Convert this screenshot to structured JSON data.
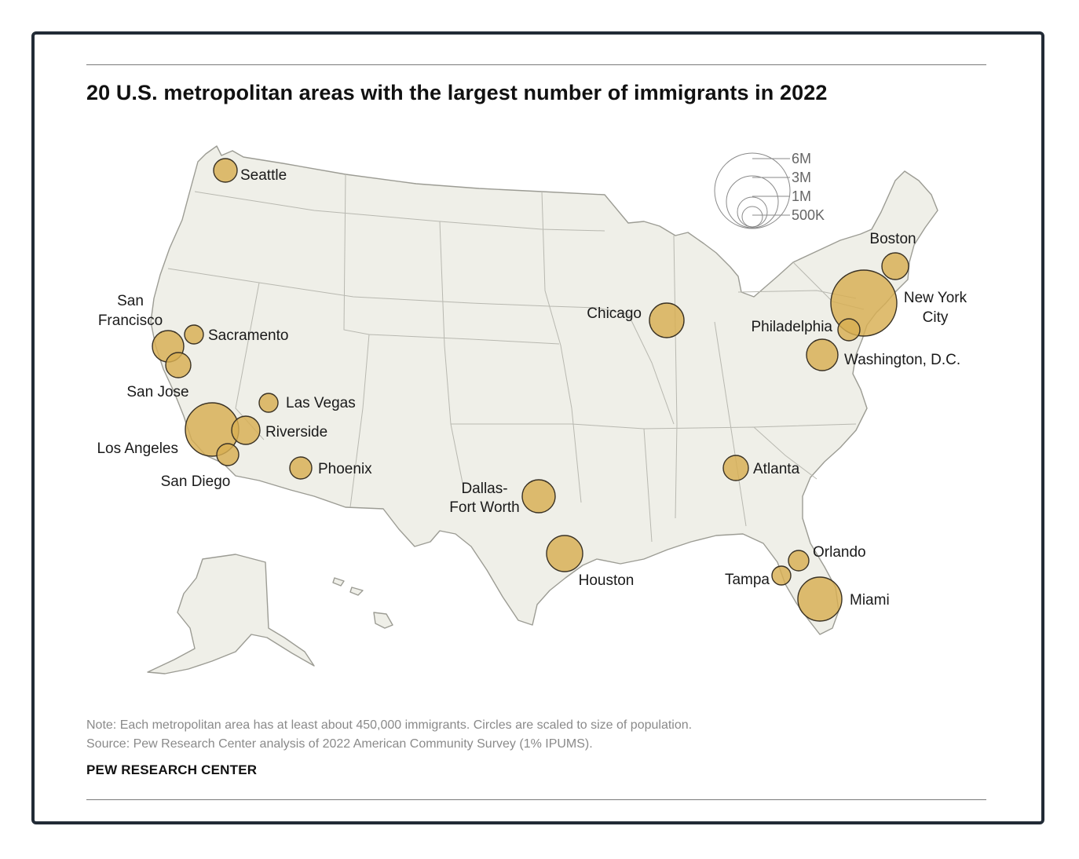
{
  "title": "20 U.S. metropolitan areas with the largest number of immigrants in 2022",
  "legend": {
    "labels": [
      "6M",
      "3M",
      "1M",
      "500K"
    ]
  },
  "cities": [
    {
      "name": "Seattle",
      "label_lines": [
        "Seattle"
      ]
    },
    {
      "name": "San Francisco",
      "label_lines": [
        "San",
        "Francisco"
      ]
    },
    {
      "name": "Sacramento",
      "label_lines": [
        "Sacramento"
      ]
    },
    {
      "name": "San Jose",
      "label_lines": [
        "San Jose"
      ]
    },
    {
      "name": "Las Vegas",
      "label_lines": [
        "Las Vegas"
      ]
    },
    {
      "name": "Riverside",
      "label_lines": [
        "Riverside"
      ]
    },
    {
      "name": "Los Angeles",
      "label_lines": [
        "Los Angeles"
      ]
    },
    {
      "name": "San Diego",
      "label_lines": [
        "San Diego"
      ]
    },
    {
      "name": "Phoenix",
      "label_lines": [
        "Phoenix"
      ]
    },
    {
      "name": "Dallas-Fort Worth",
      "label_lines": [
        "Dallas-",
        "Fort Worth"
      ]
    },
    {
      "name": "Houston",
      "label_lines": [
        "Houston"
      ]
    },
    {
      "name": "Chicago",
      "label_lines": [
        "Chicago"
      ]
    },
    {
      "name": "Atlanta",
      "label_lines": [
        "Atlanta"
      ]
    },
    {
      "name": "Orlando",
      "label_lines": [
        "Orlando"
      ]
    },
    {
      "name": "Tampa",
      "label_lines": [
        "Tampa"
      ]
    },
    {
      "name": "Miami",
      "label_lines": [
        "Miami"
      ]
    },
    {
      "name": "Washington, D.C.",
      "label_lines": [
        "Washington, D.C."
      ]
    },
    {
      "name": "Philadelphia",
      "label_lines": [
        "Philadelphia"
      ]
    },
    {
      "name": "New York City",
      "label_lines": [
        "New York",
        "City"
      ]
    },
    {
      "name": "Boston",
      "label_lines": [
        "Boston"
      ]
    }
  ],
  "note": "Note: Each metropolitan area has at least about 450,000 immigrants. Circles are scaled to size of population.",
  "source": "Source: Pew Research Center analysis of 2022 American Community Survey (1% IPUMS).",
  "brand": "PEW RESEARCH CENTER",
  "colors": {
    "bubble": "#d8ae52",
    "land": "#efefe8",
    "frame": "#222b36"
  }
}
